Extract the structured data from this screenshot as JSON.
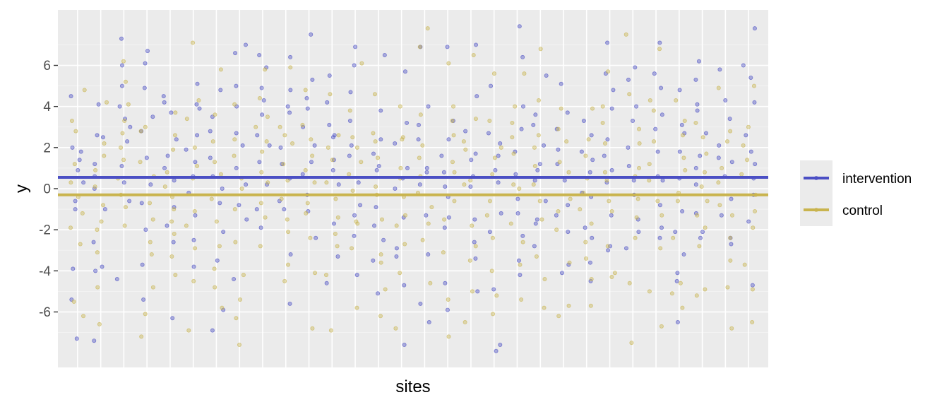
{
  "chart_data": {
    "type": "scatter",
    "title": "",
    "xlabel": "sites",
    "ylabel": "y",
    "n_sites": 30,
    "ylim": [
      -8.7,
      8.7
    ],
    "y_ticks": [
      -6,
      -4,
      -2,
      0,
      2,
      4,
      6
    ],
    "grid": true,
    "legend_position": "right",
    "series": [
      {
        "name": "intervention",
        "color": "#4B4FC4",
        "mean": 0.55,
        "site_points": [
          [
            1.8,
            0.9,
            -1.0,
            4.5,
            -3.9,
            1.4,
            -5.4,
            0.3,
            -0.6,
            2.0,
            -7.3
          ],
          [
            2.6,
            -1.0,
            4.1,
            -3.8,
            0.6,
            -2.6,
            1.2,
            -4.0,
            2.5,
            -7.4,
            0.0
          ],
          [
            7.3,
            5.0,
            3.4,
            1.1,
            -0.6,
            3.0,
            -4.4,
            2.3,
            6.0,
            0.3,
            4.0
          ],
          [
            6.7,
            3.5,
            0.2,
            -2.0,
            4.9,
            1.5,
            -3.7,
            6.1,
            -0.7,
            2.8,
            -5.4
          ],
          [
            4.2,
            1.6,
            -0.9,
            -2.6,
            2.4,
            -6.3,
            0.4,
            3.7,
            -1.8,
            4.5,
            1.0
          ],
          [
            5.1,
            3.9,
            1.3,
            -1.3,
            -3.8,
            2.6,
            0.6,
            -2.5,
            4.1,
            -0.2,
            1.9
          ],
          [
            4.8,
            3.5,
            0.6,
            -2.1,
            2.8,
            -5.9,
            -0.7,
            1.5,
            -3.5,
            0.0,
            -6.9
          ],
          [
            6.6,
            2.7,
            1.0,
            -1.5,
            4.0,
            -0.8,
            2.1,
            7.0,
            0.2,
            -4.4,
            5.0
          ],
          [
            6.5,
            4.9,
            2.6,
            0.2,
            -1.9,
            3.6,
            -1.0,
            2.1,
            5.9,
            1.3,
            4.3
          ],
          [
            6.4,
            4.8,
            2.0,
            -1.0,
            0.5,
            -3.2,
            3.7,
            -5.6,
            1.2,
            4.0,
            -0.6
          ],
          [
            7.5,
            5.3,
            3.9,
            1.3,
            -1.1,
            -2.4,
            2.1,
            0.7,
            4.4,
            -0.3,
            3.0
          ],
          [
            5.5,
            4.2,
            2.6,
            0.2,
            -1.7,
            -3.3,
            1.4,
            3.1,
            -4.6,
            0.9,
            2.5
          ],
          [
            6.0,
            4.7,
            2.1,
            0.3,
            -2.3,
            -4.2,
            1.6,
            3.3,
            -0.8,
            6.9,
            -1.3
          ],
          [
            6.5,
            3.8,
            1.7,
            -0.9,
            -2.5,
            -5.1,
            0.9,
            2.4,
            -3.5,
            1.1,
            -1.8
          ],
          [
            5.7,
            3.2,
            1.0,
            -1.4,
            -2.9,
            -4.7,
            0.5,
            2.2,
            -7.6,
            0.0,
            -3.3
          ],
          [
            6.9,
            4.0,
            1.0,
            -1.3,
            -3.2,
            -5.6,
            0.2,
            2.4,
            -6.5,
            3.1,
            0.8
          ],
          [
            6.9,
            3.3,
            1.6,
            -0.4,
            -1.9,
            -5.9,
            0.8,
            2.4,
            -4.6,
            -1.4,
            0.1
          ],
          [
            7.0,
            4.5,
            1.7,
            0.1,
            -1.5,
            -2.6,
            2.8,
            0.6,
            -3.4,
            1.4,
            -5.0
          ],
          [
            5.0,
            2.7,
            1.6,
            0.3,
            -2.1,
            -4.9,
            -7.6,
            0.9,
            -1.2,
            2.2,
            -7.9
          ],
          [
            7.9,
            6.4,
            2.9,
            0.7,
            -1.2,
            -3.5,
            1.8,
            -0.5,
            4.0,
            -2.3,
            -4.2
          ],
          [
            5.5,
            3.6,
            2.1,
            0.4,
            -1.5,
            -2.8,
            1.2,
            3.1,
            -0.6,
            -1.7,
            0.9
          ],
          [
            5.1,
            3.7,
            1.9,
            0.4,
            -2.1,
            -4.1,
            2.9,
            -0.8,
            1.2,
            -3.7,
            -1.3
          ],
          [
            3.3,
            1.8,
            -0.2,
            -1.9,
            -3.6,
            -4.5,
            0.8,
            2.6,
            -2.4,
            1.4,
            -0.4
          ],
          [
            7.1,
            5.6,
            3.9,
            1.6,
            0.3,
            -1.3,
            -3.0,
            2.4,
            -2.8,
            0.9,
            4.8
          ],
          [
            5.9,
            4.0,
            2.0,
            0.4,
            -1.5,
            -2.9,
            3.3,
            1.1,
            -0.3,
            5.3,
            -2.1
          ],
          [
            7.1,
            5.6,
            2.9,
            0.4,
            -0.8,
            -2.4,
            1.8,
            3.6,
            4.9,
            -1.9,
            0.6
          ],
          [
            4.8,
            2.7,
            0.5,
            -1.1,
            -3.2,
            -4.5,
            -6.5,
            1.8,
            -2.1,
            3.1,
            -4.1
          ],
          [
            6.2,
            4.1,
            2.7,
            1.0,
            -1.2,
            -2.4,
            3.8,
            5.3,
            0.2,
            -2.1,
            1.6
          ],
          [
            5.8,
            3.4,
            1.3,
            -0.5,
            -2.4,
            -1.3,
            2.1,
            0.6,
            4.3,
            -2.7,
            1.5
          ],
          [
            7.8,
            6.0,
            4.2,
            2.6,
            1.2,
            -0.3,
            -1.6,
            0.5,
            -4.7,
            5.4,
            1.8
          ]
        ]
      },
      {
        "name": "control",
        "color": "#C9B44E",
        "mean": -0.3,
        "site_points": [
          [
            4.8,
            2.8,
            0.3,
            -1.9,
            -2.7,
            -5.5,
            1.2,
            -0.4,
            3.3,
            -1.2,
            -6.2
          ],
          [
            4.2,
            2.2,
            0.9,
            -0.8,
            -3.1,
            -4.8,
            -6.6,
            1.6,
            -2.0,
            0.1,
            -1.6
          ],
          [
            6.2,
            4.1,
            2.7,
            1.4,
            -0.3,
            -1.8,
            2.0,
            0.5,
            3.3,
            -0.9,
            5.2
          ],
          [
            3.0,
            1.3,
            -0.7,
            -2.6,
            -4.8,
            -6.1,
            0.6,
            2.8,
            -1.5,
            -7.2,
            -3.2
          ],
          [
            3.7,
            1.9,
            0.1,
            -1.6,
            -3.3,
            -4.2,
            0.8,
            -2.2,
            2.6,
            -0.4,
            -1.0
          ],
          [
            7.1,
            4.3,
            2.0,
            0.5,
            -1.1,
            -2.9,
            -4.5,
            -6.9,
            1.1,
            3.4,
            -1.8
          ],
          [
            5.8,
            3.6,
            1.3,
            -0.5,
            -2.8,
            -4.8,
            0.7,
            2.3,
            -1.6,
            -5.8,
            -3.9
          ],
          [
            4.1,
            2.4,
            0.5,
            -1.0,
            -2.6,
            -4.2,
            -5.4,
            -7.6,
            1.6,
            -6.3,
            0.0
          ],
          [
            5.8,
            3.5,
            1.8,
            0.3,
            -1.4,
            -2.8,
            0.8,
            3.0,
            -0.7,
            2.3,
            4.4
          ],
          [
            5.9,
            3.0,
            1.2,
            -0.5,
            -2.1,
            -3.7,
            -4.5,
            0.4,
            2.2,
            -1.5,
            2.6
          ],
          [
            4.8,
            2.4,
            0.3,
            -1.2,
            -2.4,
            -4.1,
            -6.8,
            0.9,
            1.6,
            3.1,
            -0.7
          ],
          [
            4.6,
            2.0,
            0.3,
            -1.4,
            -2.8,
            -4.2,
            -6.9,
            1.4,
            -0.5,
            -2.2,
            2.6
          ],
          [
            6.1,
            3.8,
            2.5,
            0.7,
            -1.6,
            -2.9,
            -5.8,
            1.3,
            -0.1,
            -1.7,
            2.0
          ],
          [
            4.6,
            2.3,
            0.1,
            -1.5,
            -3.2,
            -4.9,
            -6.2,
            1.5,
            -0.3,
            2.7,
            -3.6
          ],
          [
            4.0,
            2.4,
            0.5,
            -1.3,
            -2.7,
            -4.1,
            -6.8,
            1.0,
            -0.4,
            2.5,
            -1.8
          ],
          [
            7.8,
            6.9,
            3.6,
            1.5,
            -0.9,
            -2.5,
            -4.6,
            0.6,
            -0.2,
            2.1,
            -1.7
          ],
          [
            6.1,
            4.0,
            2.6,
            0.8,
            -1.5,
            -3.1,
            -5.4,
            1.3,
            -0.6,
            3.3,
            -7.2
          ],
          [
            6.5,
            3.4,
            1.9,
            0.4,
            -1.8,
            -3.5,
            -5.0,
            -6.5,
            2.3,
            0.2,
            -2.8
          ],
          [
            5.6,
            3.3,
            1.5,
            -0.6,
            -2.4,
            -4.0,
            -5.2,
            -6.1,
            0.7,
            2.0,
            -1.3
          ],
          [
            5.6,
            4.0,
            1.7,
            0.2,
            -1.7,
            -3.7,
            -5.4,
            2.5,
            0.0,
            3.2,
            -2.6
          ],
          [
            6.8,
            4.3,
            2.0,
            0.2,
            -1.5,
            -3.3,
            -4.4,
            -5.8,
            1.1,
            -0.6,
            2.6
          ],
          [
            3.9,
            2.3,
            0.8,
            -0.5,
            -2.0,
            -3.6,
            -5.7,
            1.3,
            2.9,
            -1.1,
            -6.2
          ],
          [
            3.9,
            1.6,
            -0.2,
            -1.7,
            -3.4,
            -4.4,
            -5.7,
            0.5,
            2.4,
            -1.0,
            -2.6
          ],
          [
            5.7,
            4.0,
            2.2,
            0.4,
            -1.1,
            -2.8,
            -4.3,
            0.8,
            -0.6,
            3.2,
            -4.1
          ],
          [
            7.5,
            4.6,
            2.9,
            1.0,
            -0.5,
            -2.4,
            -4.6,
            -7.5,
            0.6,
            -1.4,
            2.2
          ],
          [
            6.8,
            3.8,
            2.3,
            0.4,
            -1.3,
            -2.9,
            -5.0,
            -6.7,
            1.2,
            -0.6,
            4.3
          ],
          [
            4.3,
            2.6,
            0.9,
            -0.6,
            -2.4,
            -4.6,
            -5.8,
            1.5,
            -0.2,
            3.3,
            -5.1
          ],
          [
            3.2,
            1.7,
            0.1,
            -1.3,
            -2.8,
            -4.9,
            -5.2,
            2.5,
            -0.6,
            -1.9,
            0.8
          ],
          [
            4.9,
            2.8,
            1.0,
            -0.8,
            -2.4,
            -3.5,
            -4.8,
            -6.8,
            0.3,
            2.3,
            -1.3
          ],
          [
            5.0,
            3.0,
            1.4,
            -0.3,
            -1.9,
            -3.7,
            -4.9,
            -6.5,
            0.7,
            2.1,
            -1.1
          ]
        ]
      }
    ]
  }
}
